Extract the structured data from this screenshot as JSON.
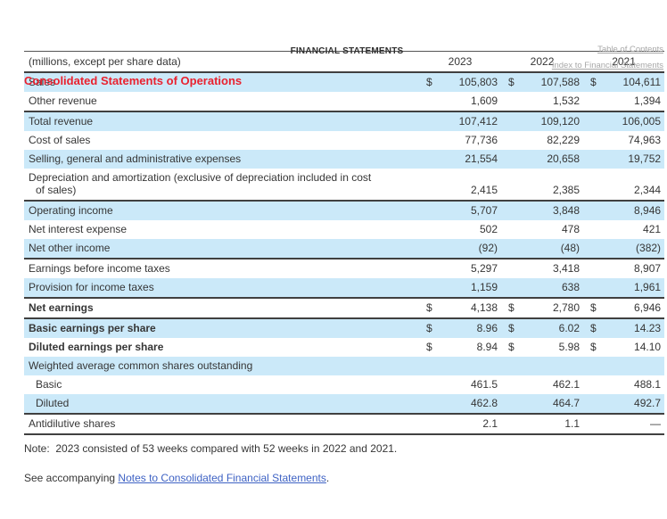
{
  "page": {
    "top_header": "FINANCIAL STATEMENTS",
    "links": {
      "toc": "Table of Contents",
      "index": "Index to Financial Statements"
    },
    "title": "Consolidated Statements of Operations",
    "note": "Note:  2023 consisted of 53 weeks compared with 52 weeks in 2022 and 2021.",
    "see_accompanying_prefix": "See accompanying ",
    "see_accompanying_link": "Notes to Consolidated Financial Statements",
    "see_accompanying_suffix": "."
  },
  "table": {
    "header_label": "(millions, except per share data)",
    "years": [
      "2023",
      "2022",
      "2021"
    ],
    "currency_symbol": "$",
    "rows": [
      {
        "label": "Sales",
        "dollar": true,
        "values": [
          "105,803",
          "107,588",
          "104,611"
        ],
        "bg": "blue"
      },
      {
        "label": "Other revenue",
        "dollar": false,
        "values": [
          "1,609",
          "1,532",
          "1,394"
        ],
        "bg": "white"
      },
      {
        "label": "Total revenue",
        "dollar": false,
        "values": [
          "107,412",
          "109,120",
          "106,005"
        ],
        "bg": "blue",
        "top": true
      },
      {
        "label": "Cost of sales",
        "dollar": false,
        "values": [
          "77,736",
          "82,229",
          "74,963"
        ],
        "bg": "white"
      },
      {
        "label": "Selling, general and administrative expenses",
        "dollar": false,
        "values": [
          "21,554",
          "20,658",
          "19,752"
        ],
        "bg": "blue"
      },
      {
        "label": "Depreciation and amortization (exclusive of depreciation included in cost",
        "label2": "of sales)",
        "dollar": false,
        "values": [
          "2,415",
          "2,385",
          "2,344"
        ],
        "bg": "white"
      },
      {
        "label": "Operating income",
        "dollar": false,
        "values": [
          "5,707",
          "3,848",
          "8,946"
        ],
        "bg": "blue",
        "top": true
      },
      {
        "label": "Net interest expense",
        "dollar": false,
        "values": [
          "502",
          "478",
          "421"
        ],
        "bg": "white"
      },
      {
        "label": "Net other income",
        "dollar": false,
        "values": [
          "(92)",
          "(48)",
          "(382)"
        ],
        "bg": "blue"
      },
      {
        "label": "Earnings before income taxes",
        "dollar": false,
        "values": [
          "5,297",
          "3,418",
          "8,907"
        ],
        "bg": "white",
        "top": true
      },
      {
        "label": "Provision for income taxes",
        "dollar": false,
        "values": [
          "1,159",
          "638",
          "1,961"
        ],
        "bg": "blue"
      },
      {
        "label": "Net earnings",
        "dollar": true,
        "values": [
          "4,138",
          "2,780",
          "6,946"
        ],
        "bg": "white",
        "bold": true,
        "top": true
      },
      {
        "label": "Basic earnings per share",
        "dollar": true,
        "values": [
          "8.96",
          "6.02",
          "14.23"
        ],
        "bg": "blue",
        "bold": true,
        "top": true
      },
      {
        "label": "Diluted earnings per share",
        "dollar": true,
        "values": [
          "8.94",
          "5.98",
          "14.10"
        ],
        "bg": "white",
        "bold": true
      },
      {
        "label": "Weighted average common shares outstanding",
        "dollar": false,
        "values": [
          "",
          "",
          ""
        ],
        "bg": "blue"
      },
      {
        "label": "Basic",
        "dollar": false,
        "values": [
          "461.5",
          "462.1",
          "488.1"
        ],
        "bg": "white",
        "indent": true
      },
      {
        "label": "Diluted",
        "dollar": false,
        "values": [
          "462.8",
          "464.7",
          "492.7"
        ],
        "bg": "blue",
        "indent": true
      },
      {
        "label": "Antidilutive shares",
        "dollar": false,
        "values": [
          "2.1",
          "1.1",
          "—"
        ],
        "bg": "white",
        "top": true,
        "bottom": true
      }
    ]
  },
  "colors": {
    "row_blue": "#cbe9f9",
    "title_red": "#e9212e",
    "border_dark": "#404040",
    "text": "#363636",
    "gray_link": "#a8a8a8",
    "blue_link": "#3e62c4"
  }
}
